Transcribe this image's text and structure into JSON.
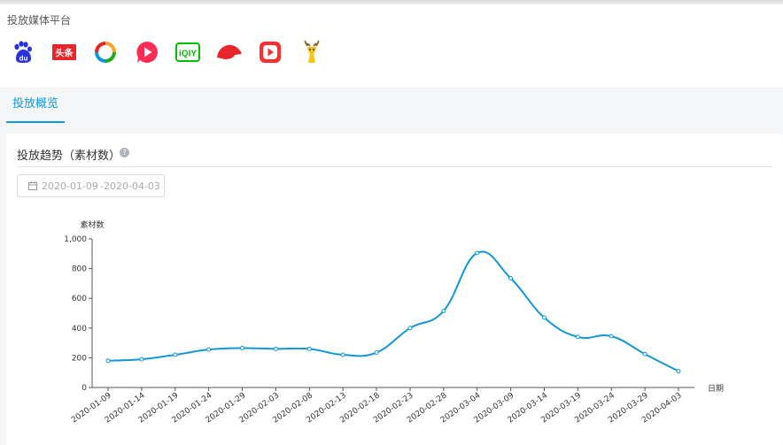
{
  "media_section": {
    "title": "投放媒体平台",
    "platforms": [
      {
        "icon": "baidu-icon",
        "text": "du",
        "color": "#2932e1"
      },
      {
        "icon": "toutiao-icon",
        "text": "头条",
        "color": "#e8252b"
      },
      {
        "icon": "ring-logo-icon",
        "colors": [
          "#f5a623",
          "#1aad19",
          "#1296db",
          "#e8252b"
        ]
      },
      {
        "icon": "play-bubble-icon",
        "color": "#fe2c55"
      },
      {
        "icon": "iqiyi-icon",
        "text": "iQIY",
        "color": "#00be06"
      },
      {
        "icon": "red-cap-icon",
        "color": "#e8252b"
      },
      {
        "icon": "red-play-icon",
        "color": "#ff2d2d"
      },
      {
        "icon": "deer-icon",
        "color": "#f5c518"
      }
    ]
  },
  "tabs": [
    {
      "label": "投放概览",
      "active": true
    }
  ],
  "trend": {
    "title": "投放趋势（素材数）",
    "help_icon": "question-circle-icon",
    "date_range": {
      "icon": "calendar-icon",
      "start": "2020-01-09",
      "separator": "-",
      "end": "2020-04-03"
    }
  },
  "chart_data": {
    "type": "line",
    "ylabel": "素材数",
    "xlabel": "日期",
    "ylim": [
      0,
      1000
    ],
    "yticks": [
      0,
      200,
      400,
      600,
      800,
      1000
    ],
    "ytick_labels": [
      "0",
      "200",
      "400",
      "600",
      "800",
      "1,000"
    ],
    "x": [
      "2020-01-09",
      "2020-01-14",
      "2020-01-19",
      "2020-01-24",
      "2020-01-29",
      "2020-02-03",
      "2020-02-08",
      "2020-02-13",
      "2020-02-18",
      "2020-02-23",
      "2020-02-28",
      "2020-03-04",
      "2020-03-09",
      "2020-03-14",
      "2020-03-19",
      "2020-03-24",
      "2020-03-29",
      "2020-04-03"
    ],
    "series": [
      {
        "values": [
          180,
          190,
          220,
          255,
          265,
          260,
          260,
          220,
          235,
          400,
          515,
          905,
          735,
          470,
          340,
          345,
          225,
          110
        ],
        "color": "#1296db"
      }
    ],
    "smooth": true,
    "grid": false
  }
}
